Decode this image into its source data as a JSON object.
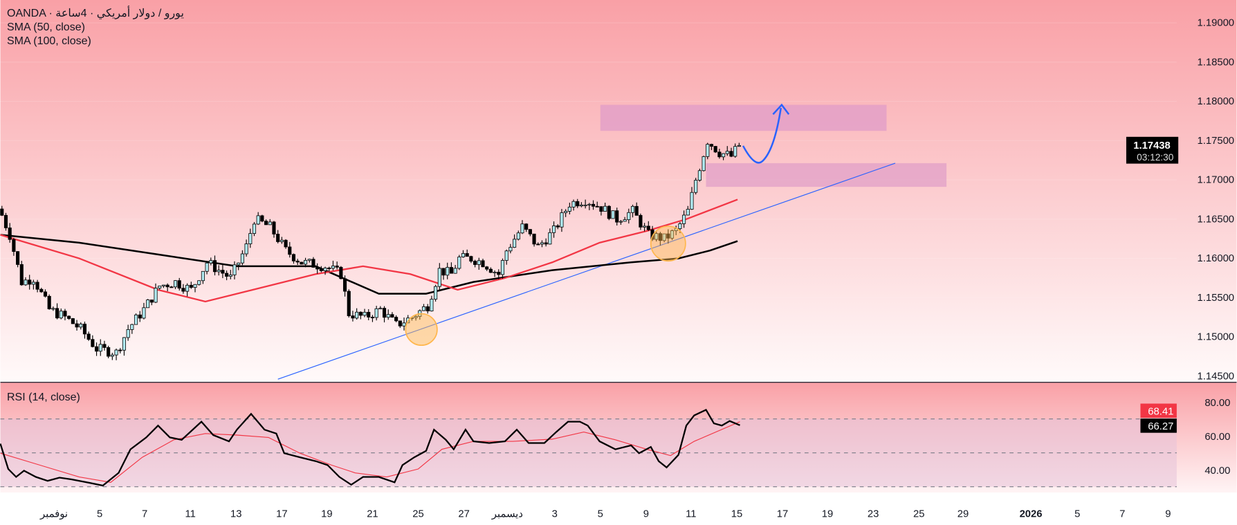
{
  "legend": {
    "symbol": "OANDA · يورو / دولار أمريكي · 4ساعة",
    "sma50": "SMA (50, close)",
    "sma100": "SMA (100, close)",
    "rsi": "RSI (14, close)"
  },
  "price_axis": {
    "labels": [
      "1.19000",
      "1.18500",
      "1.18000",
      "1.17500",
      "1.17000",
      "1.16500",
      "1.16000",
      "1.15500",
      "1.15000",
      "1.14500"
    ],
    "values": [
      1.19,
      1.185,
      1.18,
      1.175,
      1.17,
      1.165,
      1.16,
      1.155,
      1.15,
      1.145
    ],
    "last_price": "1.17438",
    "last_price_value": 1.17438,
    "countdown": "03:12:30"
  },
  "rsi_axis": {
    "labels": [
      "80.00",
      "60.00",
      "40.00"
    ],
    "values": [
      80,
      60,
      40
    ],
    "rsi_ma_value": "68.41",
    "rsi_value": "66.27",
    "bands": [
      70,
      50,
      30
    ]
  },
  "time_axis": {
    "labels": [
      "نوفمبر",
      "5",
      "7",
      "11",
      "13",
      "17",
      "19",
      "21",
      "25",
      "27",
      "ديسمبر",
      "3",
      "5",
      "9",
      "11",
      "15",
      "17",
      "19",
      "23",
      "25",
      "29",
      "2026",
      "5",
      "7",
      "9"
    ]
  },
  "colors": {
    "up": "#b2ebf2",
    "down": "#000000",
    "sma50": "#f23645",
    "sma100": "#000000",
    "trendline": "#2962ff",
    "zone": "#e09cc8",
    "highlight": "#ffb74d",
    "rsi_ma_tag": "#f23645"
  },
  "price_path": [
    [
      0,
      1.1655
    ],
    [
      2,
      1.163
    ],
    [
      5,
      1.157
    ],
    [
      8,
      1.1575
    ],
    [
      12,
      1.1535
    ],
    [
      16,
      1.1525
    ],
    [
      20,
      1.151
    ],
    [
      24,
      1.1485
    ],
    [
      29,
      1.148
    ],
    [
      32,
      1.151
    ],
    [
      36,
      1.1535
    ],
    [
      40,
      1.1565
    ],
    [
      44,
      1.157
    ],
    [
      48,
      1.156
    ],
    [
      52,
      1.1595
    ],
    [
      58,
      1.1575
    ],
    [
      62,
      1.1615
    ],
    [
      64,
      1.165
    ],
    [
      68,
      1.164
    ],
    [
      72,
      1.161
    ],
    [
      76,
      1.1595
    ],
    [
      82,
      1.159
    ],
    [
      86,
      1.158
    ],
    [
      88,
      1.153
    ],
    [
      92,
      1.1525
    ],
    [
      96,
      1.1535
    ],
    [
      100,
      1.1515
    ],
    [
      104,
      1.1525
    ],
    [
      108,
      1.154
    ],
    [
      111,
      1.1585
    ],
    [
      114,
      1.158
    ],
    [
      116,
      1.16
    ],
    [
      119,
      1.16
    ],
    [
      122,
      1.1595
    ],
    [
      126,
      1.158
    ],
    [
      128,
      1.161
    ],
    [
      132,
      1.164
    ],
    [
      136,
      1.1615
    ],
    [
      140,
      1.1635
    ],
    [
      144,
      1.167
    ],
    [
      148,
      1.1675
    ],
    [
      152,
      1.1665
    ],
    [
      156,
      1.165
    ],
    [
      160,
      1.166
    ],
    [
      164,
      1.163
    ],
    [
      168,
      1.1625
    ],
    [
      171,
      1.1635
    ],
    [
      174,
      1.166
    ],
    [
      176,
      1.17
    ],
    [
      179,
      1.175
    ],
    [
      182,
      1.1735
    ],
    [
      185,
      1.173
    ],
    [
      187,
      1.17438
    ]
  ],
  "sma50_path": [
    [
      0,
      1.163
    ],
    [
      20,
      1.16
    ],
    [
      40,
      1.156
    ],
    [
      52,
      1.1545
    ],
    [
      64,
      1.156
    ],
    [
      80,
      1.158
    ],
    [
      92,
      1.159
    ],
    [
      104,
      1.158
    ],
    [
      116,
      1.156
    ],
    [
      128,
      1.1575
    ],
    [
      140,
      1.1595
    ],
    [
      152,
      1.162
    ],
    [
      164,
      1.1635
    ],
    [
      174,
      1.165
    ],
    [
      187,
      1.1675
    ]
  ],
  "sma100_path": [
    [
      0,
      1.163
    ],
    [
      20,
      1.162
    ],
    [
      40,
      1.1605
    ],
    [
      60,
      1.159
    ],
    [
      80,
      1.159
    ],
    [
      96,
      1.1555
    ],
    [
      108,
      1.1555
    ],
    [
      120,
      1.157
    ],
    [
      140,
      1.1585
    ],
    [
      160,
      1.1595
    ],
    [
      172,
      1.16
    ],
    [
      180,
      1.161
    ],
    [
      187,
      1.1622
    ]
  ],
  "rsi_path": [
    [
      0,
      55.4
    ],
    [
      2,
      40.5
    ],
    [
      4,
      35.8
    ],
    [
      6,
      39.5
    ],
    [
      9,
      35.8
    ],
    [
      12,
      33.5
    ],
    [
      15,
      35.4
    ],
    [
      18,
      34.4
    ],
    [
      22,
      32.6
    ],
    [
      26,
      30.7
    ],
    [
      30,
      38.2
    ],
    [
      33,
      52.1
    ],
    [
      37,
      59.1
    ],
    [
      40,
      66.1
    ],
    [
      43,
      59.1
    ],
    [
      46,
      57.7
    ],
    [
      51,
      68.4
    ],
    [
      54,
      60.5
    ],
    [
      58,
      56.8
    ],
    [
      60,
      63.7
    ],
    [
      63.6,
      73.0
    ],
    [
      67,
      63.7
    ],
    [
      70,
      61.4
    ],
    [
      72,
      49.8
    ],
    [
      76,
      47.4
    ],
    [
      80,
      45.1
    ],
    [
      83,
      42.8
    ],
    [
      86,
      35.8
    ],
    [
      89,
      31.2
    ],
    [
      92,
      35.8
    ],
    [
      96,
      35.8
    ],
    [
      100,
      32.6
    ],
    [
      102,
      42.8
    ],
    [
      105,
      47.4
    ],
    [
      108,
      51.2
    ],
    [
      110,
      63.7
    ],
    [
      113,
      57.7
    ],
    [
      115,
      52.1
    ],
    [
      118,
      63.7
    ],
    [
      120,
      56.8
    ],
    [
      124,
      55.8
    ],
    [
      128,
      56.8
    ],
    [
      131,
      63.7
    ],
    [
      134,
      55.8
    ],
    [
      138,
      55.8
    ],
    [
      141,
      62.3
    ],
    [
      144,
      68.4
    ],
    [
      147,
      68.4
    ],
    [
      149,
      66.1
    ],
    [
      152,
      56.8
    ],
    [
      156,
      52.1
    ],
    [
      160,
      54.4
    ],
    [
      162,
      49.8
    ],
    [
      165,
      53.5
    ],
    [
      167,
      45.1
    ],
    [
      169,
      41.4
    ],
    [
      172,
      48.8
    ],
    [
      174,
      66.1
    ],
    [
      176,
      72.1
    ],
    [
      179,
      75.4
    ],
    [
      181,
      67.4
    ],
    [
      183,
      66.1
    ],
    [
      185,
      68.8
    ],
    [
      187.6,
      66.27
    ]
  ],
  "rsi_ma_path": [
    [
      0,
      49.8
    ],
    [
      10,
      42.8
    ],
    [
      20,
      35.8
    ],
    [
      28,
      32.6
    ],
    [
      36,
      47.4
    ],
    [
      44,
      57.7
    ],
    [
      52,
      61.4
    ],
    [
      60,
      60.5
    ],
    [
      68,
      59.1
    ],
    [
      76,
      49.8
    ],
    [
      84,
      42.8
    ],
    [
      90,
      38.2
    ],
    [
      98,
      35.8
    ],
    [
      106,
      40.5
    ],
    [
      112,
      52.1
    ],
    [
      120,
      56.8
    ],
    [
      130,
      56.8
    ],
    [
      140,
      58.1
    ],
    [
      148,
      62.3
    ],
    [
      156,
      57.7
    ],
    [
      164,
      52.1
    ],
    [
      170,
      48.4
    ],
    [
      176,
      56.8
    ],
    [
      187.6,
      68.41
    ]
  ]
}
